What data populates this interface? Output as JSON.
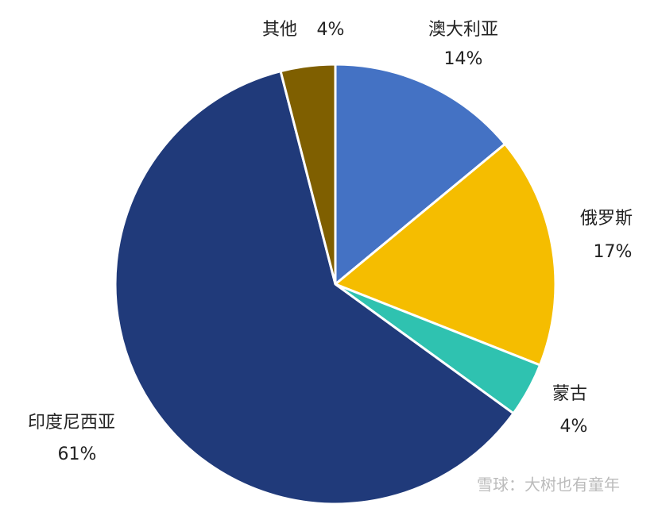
{
  "chart_data": {
    "type": "pie",
    "categories": [
      "澳大利亚",
      "俄罗斯",
      "蒙古",
      "印度尼西亚",
      "其他"
    ],
    "values": [
      14,
      17,
      4,
      61,
      4
    ],
    "value_labels": [
      "14%",
      "17%",
      "4%",
      "61%",
      "4%"
    ],
    "colors": [
      "#4472c4",
      "#f5bd00",
      "#2fc2b0",
      "#203a7a",
      "#7f5f00"
    ],
    "watermark": "雪球：大树也有童年"
  }
}
